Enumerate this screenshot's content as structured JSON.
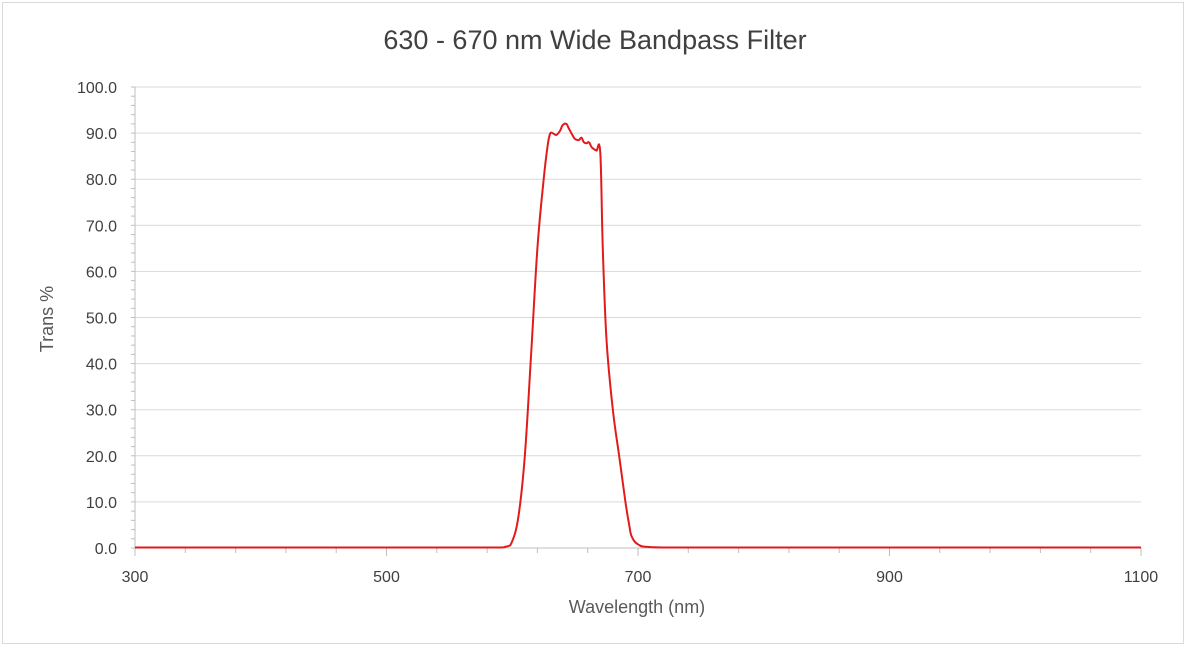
{
  "chart_data": {
    "type": "line",
    "title": "630 - 670 nm Wide Bandpass Filter",
    "xlabel": "Wavelength (nm)",
    "ylabel": "Trans %",
    "xlim": [
      300,
      1100
    ],
    "ylim": [
      0,
      100
    ],
    "xticks": [
      300,
      500,
      700,
      900,
      1100
    ],
    "yticks": [
      "0.0",
      "10.0",
      "20.0",
      "30.0",
      "40.0",
      "50.0",
      "60.0",
      "70.0",
      "80.0",
      "90.0",
      "100.0"
    ],
    "grid": true,
    "line_color": "#e31a1c",
    "series": [
      {
        "x": [
          300,
          400,
          500,
          580,
          595,
          600,
          605,
          610,
          615,
          620,
          625,
          628,
          630,
          632,
          635,
          638,
          640,
          643,
          645,
          648,
          650,
          653,
          655,
          657,
          659,
          661,
          663,
          665,
          667,
          670,
          672,
          675,
          680,
          685,
          690,
          693,
          695,
          700,
          710,
          750,
          900,
          1100
        ],
        "y": [
          0.1,
          0.1,
          0.1,
          0.1,
          0.3,
          1.5,
          7,
          20,
          42,
          65,
          80,
          87,
          89.8,
          90,
          89.6,
          90.5,
          91.7,
          92,
          91,
          89.5,
          88.7,
          88.5,
          89,
          88,
          87.8,
          88,
          87,
          86.5,
          86.2,
          85.8,
          65,
          45,
          30,
          20,
          10,
          5,
          2.5,
          0.8,
          0.2,
          0.1,
          0.1,
          0.1
        ]
      }
    ]
  }
}
